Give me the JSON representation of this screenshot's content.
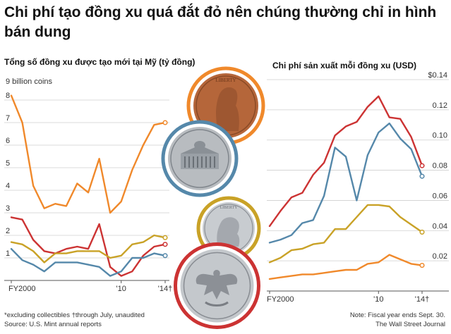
{
  "headline": "Chi phí tạo đồng xu quá đắt đỏ nên chúng thường chỉ in hình bán dung",
  "chart_data": [
    {
      "type": "line",
      "title": "Tổng số đồng xu được tạo mới tại Mỹ (tỷ đồng)",
      "unit_label": "9 billion coins",
      "x": [
        2000,
        2001,
        2002,
        2003,
        2004,
        2005,
        2006,
        2007,
        2008,
        2009,
        2010,
        2011,
        2012,
        2013,
        2014
      ],
      "ylim": [
        0,
        9
      ],
      "yticks": [
        0,
        1,
        2,
        3,
        4,
        5,
        6,
        7,
        8
      ],
      "ytick_labels": [
        "",
        "1",
        "2",
        "3",
        "4",
        "5",
        "6",
        "7",
        "8"
      ],
      "xtick_labels": [
        {
          "x": 2000,
          "label": "FY2000"
        },
        {
          "x": 2010,
          "label": "'10"
        },
        {
          "x": 2014,
          "label": "'14†"
        }
      ],
      "grid": true,
      "series": [
        {
          "color": "#f0892b",
          "values": [
            8.2,
            7.0,
            4.2,
            3.2,
            3.4,
            3.3,
            4.3,
            3.9,
            5.4,
            3.0,
            3.5,
            4.9,
            6.0,
            6.9,
            7.0
          ]
        },
        {
          "color": "#cc3333",
          "values": [
            2.8,
            2.7,
            1.8,
            1.3,
            1.2,
            1.4,
            1.5,
            1.4,
            2.5,
            0.6,
            0.2,
            0.4,
            1.1,
            1.5,
            1.6
          ]
        },
        {
          "color": "#c9a227",
          "values": [
            1.7,
            1.6,
            1.3,
            0.8,
            1.2,
            1.2,
            1.3,
            1.3,
            1.3,
            1.0,
            1.1,
            1.6,
            1.7,
            2.0,
            1.9
          ]
        },
        {
          "color": "#5588aa",
          "values": [
            1.4,
            0.9,
            0.7,
            0.4,
            0.8,
            0.8,
            0.8,
            0.7,
            0.6,
            0.2,
            0.4,
            1.0,
            1.0,
            1.2,
            1.1
          ]
        }
      ]
    },
    {
      "type": "line",
      "title": "Chi phí sản xuất mỗi đồng xu (USD)",
      "x": [
        2000,
        2001,
        2002,
        2003,
        2004,
        2005,
        2006,
        2007,
        2008,
        2009,
        2010,
        2011,
        2012,
        2013,
        2014
      ],
      "ylim": [
        0,
        0.14
      ],
      "yticks": [
        0,
        0.02,
        0.04,
        0.06,
        0.08,
        0.1,
        0.12,
        0.14
      ],
      "ytick_labels": [
        "",
        "0.02",
        "0.04",
        "0.06",
        "0.08",
        "0.10",
        "0.12",
        "$0.14"
      ],
      "xtick_labels": [
        {
          "x": 2000,
          "label": "FY2000"
        },
        {
          "x": 2010,
          "label": "'10"
        },
        {
          "x": 2014,
          "label": "'14†"
        }
      ],
      "grid": true,
      "series": [
        {
          "color": "#cc3333",
          "values": [
            0.043,
            0.053,
            0.062,
            0.065,
            0.077,
            0.085,
            0.103,
            0.109,
            0.112,
            0.122,
            0.129,
            0.115,
            0.114,
            0.102,
            0.083
          ]
        },
        {
          "color": "#5588aa",
          "values": [
            0.032,
            0.034,
            0.037,
            0.045,
            0.047,
            0.063,
            0.095,
            0.089,
            0.06,
            0.09,
            0.105,
            0.111,
            0.101,
            0.094,
            0.076
          ]
        },
        {
          "color": "#c9a227",
          "values": [
            0.019,
            0.022,
            0.027,
            0.028,
            0.031,
            0.032,
            0.041,
            0.041,
            0.049,
            0.057,
            0.057,
            0.056,
            0.049,
            0.044,
            0.039
          ]
        },
        {
          "color": "#f0892b",
          "values": [
            0.008,
            0.009,
            0.01,
            0.011,
            0.011,
            0.012,
            0.013,
            0.014,
            0.014,
            0.018,
            0.019,
            0.024,
            0.021,
            0.018,
            0.017
          ]
        }
      ]
    }
  ],
  "footnote": "*excluding collectibles  †through July, unaudited",
  "source": "Source: U.S. Mint annual reports",
  "note": "Note: Fiscal year ends Sept. 30.",
  "credit": "The Wall Street Journal",
  "coins": [
    {
      "icon": "penny-coin-icon",
      "ring": "#f0892b",
      "fill": "#b5663a"
    },
    {
      "icon": "nickel-coin-icon",
      "ring": "#5588aa",
      "fill": "#b8bcc0"
    },
    {
      "icon": "dime-coin-icon",
      "ring": "#c9a227",
      "fill": "#c8ccd0"
    },
    {
      "icon": "quarter-coin-icon",
      "ring": "#cc3333",
      "fill": "#c4c8cc"
    }
  ]
}
